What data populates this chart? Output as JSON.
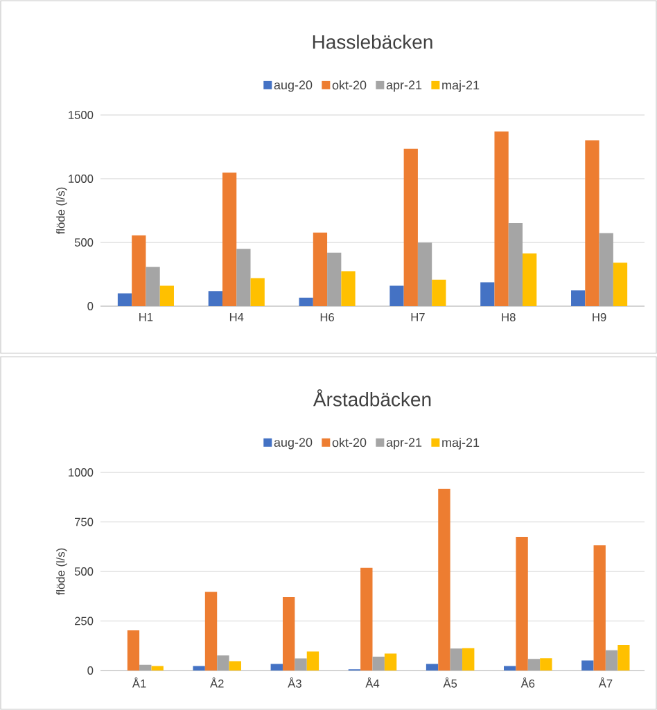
{
  "chart_data": [
    {
      "type": "bar",
      "title": "Hasslebäcken",
      "ylabel": "flöde (l/s)",
      "categories": [
        "H1",
        "H4",
        "H6",
        "H7",
        "H8",
        "H9"
      ],
      "series": [
        {
          "name": "aug-20",
          "color": "#4472c4",
          "values": [
            100,
            118,
            66,
            160,
            187,
            124
          ]
        },
        {
          "name": "okt-20",
          "color": "#ed7d31",
          "values": [
            556,
            1048,
            577,
            1235,
            1371,
            1302
          ]
        },
        {
          "name": "apr-21",
          "color": "#a5a5a5",
          "values": [
            308,
            450,
            420,
            498,
            652,
            574
          ]
        },
        {
          "name": "maj-21",
          "color": "#ffc000",
          "values": [
            160,
            220,
            275,
            208,
            414,
            341
          ]
        }
      ],
      "ylim": [
        0,
        1500
      ],
      "yticks": [
        0,
        500,
        1000,
        1500
      ],
      "grid": "y",
      "legend": "top"
    },
    {
      "type": "bar",
      "title": "Årstadbäcken",
      "ylabel": "flöde (l/s)",
      "categories": [
        "Å1",
        "Å2",
        "Å3",
        "Å4",
        "Å5",
        "Å6",
        "Å7"
      ],
      "series": [
        {
          "name": "aug-20",
          "color": "#4472c4",
          "values": [
            0,
            23,
            33,
            6,
            33,
            23,
            51
          ]
        },
        {
          "name": "okt-20",
          "color": "#ed7d31",
          "values": [
            203,
            397,
            371,
            518,
            917,
            675,
            632
          ]
        },
        {
          "name": "apr-21",
          "color": "#a5a5a5",
          "values": [
            29,
            76,
            61,
            70,
            111,
            59,
            102
          ]
        },
        {
          "name": "maj-21",
          "color": "#ffc000",
          "values": [
            23,
            47,
            96,
            86,
            113,
            62,
            129
          ]
        }
      ],
      "ylim": [
        0,
        1000
      ],
      "yticks": [
        0,
        250,
        500,
        750,
        1000
      ],
      "grid": "y",
      "legend": "top"
    }
  ]
}
